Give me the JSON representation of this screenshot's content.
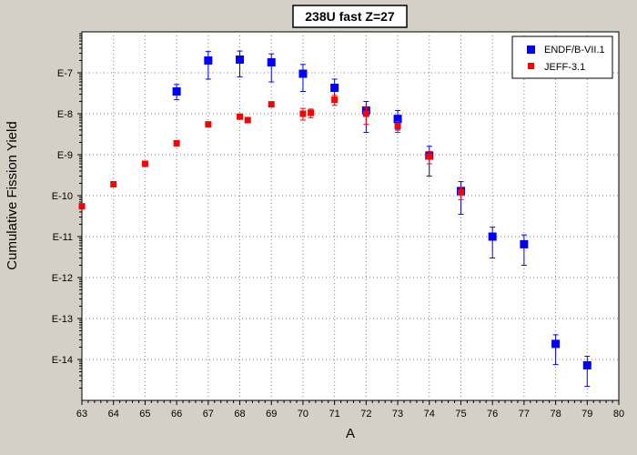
{
  "chart_data": {
    "type": "scatter",
    "title": "238U fast Z=27",
    "xlabel": "A",
    "ylabel": "Cumulative Fission Yield",
    "x_scale": "linear",
    "y_scale": "log",
    "xlim": [
      63,
      80
    ],
    "ylim": [
      1e-15,
      1e-06
    ],
    "x_ticks": [
      63,
      64,
      65,
      66,
      67,
      68,
      69,
      70,
      71,
      72,
      73,
      74,
      75,
      76,
      77,
      78,
      79,
      80
    ],
    "x_tick_labels": [
      "63",
      "64",
      "65",
      "66",
      "67",
      "68",
      "69",
      "70",
      "71",
      "72",
      "73",
      "74",
      "75",
      "76",
      "77",
      "78",
      "79",
      "80"
    ],
    "y_ticks": [
      1e-14,
      1e-13,
      1e-12,
      1e-11,
      1e-10,
      1e-09,
      1e-08,
      1e-07
    ],
    "y_tick_labels": [
      "E-14",
      "E-13",
      "E-12",
      "E-11",
      "E-10",
      "E-9",
      "E-8",
      "E-7"
    ],
    "grid": true,
    "legend_position": "top-right",
    "series": [
      {
        "name": "ENDF/B-VII.1",
        "color": "#0000ff",
        "marker": "square",
        "points": [
          {
            "x": 66,
            "y": 3.5e-08,
            "ylo": 2.2e-08,
            "yhi": 5.2e-08
          },
          {
            "x": 67,
            "y": 2e-07,
            "ylo": 7e-08,
            "yhi": 3.3e-07
          },
          {
            "x": 68,
            "y": 2.1e-07,
            "ylo": 8e-08,
            "yhi": 3.4e-07
          },
          {
            "x": 69,
            "y": 1.8e-07,
            "ylo": 6e-08,
            "yhi": 2.9e-07
          },
          {
            "x": 70,
            "y": 9.5e-08,
            "ylo": 3.5e-08,
            "yhi": 1.6e-07
          },
          {
            "x": 71,
            "y": 4.3e-08,
            "ylo": 2.2e-08,
            "yhi": 7e-08
          },
          {
            "x": 72,
            "y": 1.2e-08,
            "ylo": 3.5e-09,
            "yhi": 2e-08
          },
          {
            "x": 73,
            "y": 7.5e-09,
            "ylo": 4e-09,
            "yhi": 1.2e-08
          },
          {
            "x": 74,
            "y": 9.5e-10,
            "ylo": 3e-10,
            "yhi": 1.6e-09
          },
          {
            "x": 75,
            "y": 1.3e-10,
            "ylo": 3.5e-11,
            "yhi": 2.2e-10
          },
          {
            "x": 76,
            "y": 1e-11,
            "ylo": 3e-12,
            "yhi": 1.7e-11
          },
          {
            "x": 77,
            "y": 6.5e-12,
            "ylo": 2e-12,
            "yhi": 1.1e-11
          },
          {
            "x": 78,
            "y": 2.4e-14,
            "ylo": 7.5e-15,
            "yhi": 4e-14
          },
          {
            "x": 79,
            "y": 7.2e-15,
            "ylo": 2.2e-15,
            "yhi": 1.2e-14
          }
        ]
      },
      {
        "name": "JEFF-3.1",
        "color": "#ff0000",
        "marker": "square",
        "points": [
          {
            "x": 63,
            "y": 5.5e-11
          },
          {
            "x": 64,
            "y": 1.9e-10
          },
          {
            "x": 65,
            "y": 6e-10
          },
          {
            "x": 66,
            "y": 1.9e-09
          },
          {
            "x": 67,
            "y": 5.5e-09
          },
          {
            "x": 68,
            "y": 8.5e-09
          },
          {
            "x": 68.25,
            "y": 7e-09
          },
          {
            "x": 69,
            "y": 1.7e-08
          },
          {
            "x": 70,
            "y": 1e-08,
            "ylo": 7e-09,
            "yhi": 1.35e-08
          },
          {
            "x": 70.25,
            "y": 1.05e-08,
            "ylo": 8e-09,
            "yhi": 1.3e-08
          },
          {
            "x": 71,
            "y": 2.2e-08,
            "ylo": 1.6e-08,
            "yhi": 2.8e-08
          },
          {
            "x": 72,
            "y": 1e-08,
            "ylo": 5.5e-09,
            "yhi": 1.4e-08
          },
          {
            "x": 73,
            "y": 5e-09,
            "ylo": 3.5e-09,
            "yhi": 6.5e-09
          },
          {
            "x": 74,
            "y": 9e-10,
            "ylo": 6e-10,
            "yhi": 1.2e-09
          },
          {
            "x": 75,
            "y": 1.2e-10,
            "ylo": 8e-11,
            "yhi": 1.6e-10
          }
        ]
      }
    ]
  }
}
